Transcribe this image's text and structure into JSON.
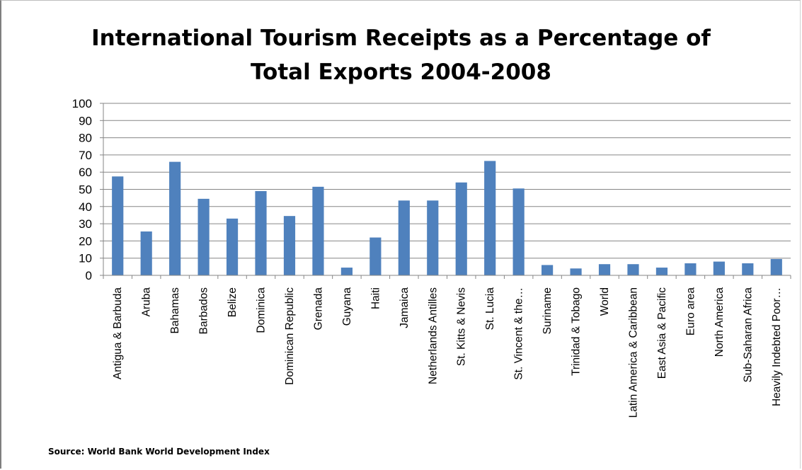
{
  "chart_data": {
    "type": "bar",
    "title": "International Tourism Receipts as a Percentage of Total Exports 2004-2008",
    "title_lines": [
      "International Tourism Receipts as a Percentage of",
      "Total Exports 2004-2008"
    ],
    "categories": [
      "Antigua & Barbuda",
      "Aruba",
      "Bahamas",
      "Barbados",
      "Belize",
      "Dominica",
      "Dominican Republic",
      "Grenada",
      "Guyana",
      "Haiti",
      "Jamaica",
      "Netherlands Antilles",
      "St. Kitts & Nevis",
      "St. Lucia",
      "St. Vincent & the…",
      "Suriname",
      "Trinidad & Tobago",
      "World",
      "Latin America & Caribbean",
      "East Asia & Pacific",
      "Euro area",
      "North America",
      "Sub-Saharan Africa",
      "Heavily Indebted Poor…"
    ],
    "values": [
      57.5,
      25.5,
      66,
      44.5,
      33,
      49,
      34.5,
      51.5,
      4.5,
      22,
      43.5,
      43.5,
      54,
      66.5,
      50.5,
      6,
      4,
      6.5,
      6.5,
      4.5,
      7,
      8,
      7,
      9.5
    ],
    "ylim": [
      0,
      100
    ],
    "yticks": [
      "0",
      "10",
      "20",
      "30",
      "40",
      "50",
      "60",
      "70",
      "80",
      "90",
      "100"
    ],
    "grid": true,
    "bar_color": "#4f81bd",
    "grid_color": "#868686",
    "source": "Source: World Bank World Development Index"
  }
}
